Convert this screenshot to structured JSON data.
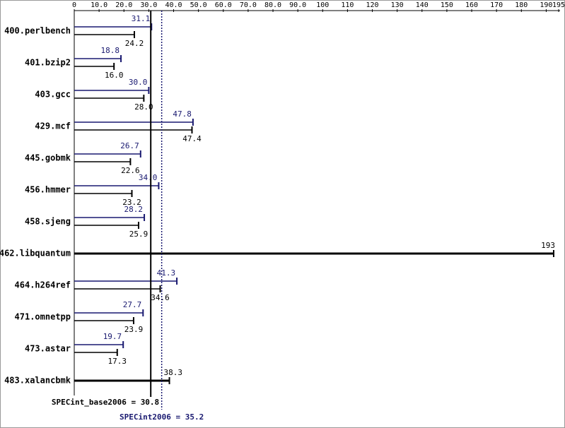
{
  "chart_data": {
    "type": "bar",
    "categories": [
      "400.perlbench",
      "401.bzip2",
      "403.gcc",
      "429.mcf",
      "445.gobmk",
      "456.hmmer",
      "458.sjeng",
      "462.libquantum",
      "464.h264ref",
      "471.omnetpp",
      "473.astar",
      "483.xalancbmk"
    ],
    "series": [
      {
        "color": "#191970",
        "values": [
          31.1,
          18.8,
          30.0,
          47.8,
          26.7,
          34.0,
          28.2,
          null,
          41.3,
          27.7,
          19.7,
          null
        ],
        "value_labels": [
          "31.1",
          "18.8",
          "30.0",
          "47.8",
          "26.7",
          "34.0",
          "28.2",
          null,
          "41.3",
          "27.7",
          "19.7",
          null
        ]
      },
      {
        "color": "#000000",
        "values": [
          24.2,
          16.0,
          28.0,
          47.4,
          22.6,
          23.2,
          25.9,
          193,
          34.6,
          23.9,
          17.3,
          38.3
        ],
        "value_labels": [
          "24.2",
          "16.0",
          "28.0",
          "47.4",
          "22.6",
          "23.2",
          "25.9",
          "193",
          "34.6",
          "23.9",
          "17.3",
          "38.3"
        ]
      }
    ],
    "xlim": [
      0,
      195
    ],
    "xticks": [
      0,
      {
        "value": 10,
        "label": "10.0"
      },
      {
        "value": 20,
        "label": "20.0"
      },
      {
        "value": 30,
        "label": "30.0"
      },
      {
        "value": 40,
        "label": "40.0"
      },
      {
        "value": 50,
        "label": "50.0"
      },
      {
        "value": 60,
        "label": "60.0"
      },
      {
        "value": 70,
        "label": "70.0"
      },
      {
        "value": 80,
        "label": "80.0"
      },
      {
        "value": 90,
        "label": "90.0"
      },
      100,
      110,
      120,
      130,
      140,
      150,
      160,
      170,
      180,
      190,
      195
    ],
    "reference_lines": [
      {
        "label": "SPECint_base2006 = 30.8",
        "value": 30.8,
        "color": "#000000",
        "style": "solid"
      },
      {
        "label": "SPECint2006 = 35.2",
        "value": 35.2,
        "color": "#191970",
        "style": "dotted"
      }
    ]
  }
}
